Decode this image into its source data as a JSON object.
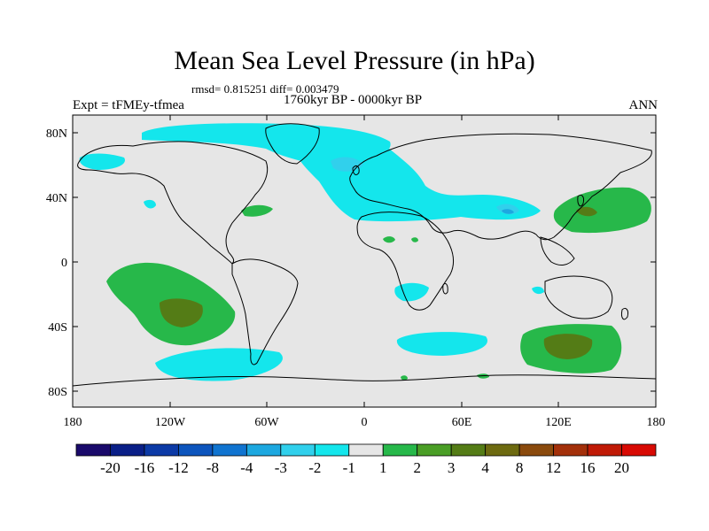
{
  "title": "Mean Sea Level Pressure (in hPa)",
  "stats": "rmsd= 0.815251 diff= 0.003479",
  "period": "1760kyr BP - 0000kyr BP",
  "experiment": "Expt = tFMEy-tfmea",
  "season": "ANN",
  "map": {
    "ocean_color": "#e6e6e6",
    "coast_color": "#000000",
    "lat_ticks": [
      "80N",
      "40N",
      "0",
      "40S",
      "80S"
    ],
    "lon_ticks": [
      "180",
      "120W",
      "60W",
      "0",
      "60E",
      "120E",
      "180"
    ]
  },
  "colorbar": {
    "labels": [
      "-20",
      "-16",
      "-12",
      "-8",
      "-4",
      "-3",
      "-2",
      "-1",
      "1",
      "2",
      "3",
      "4",
      "8",
      "12",
      "16",
      "20"
    ],
    "colors": [
      "#1a0a6b",
      "#0a1f87",
      "#0c3aa6",
      "#0d55bd",
      "#1074d0",
      "#1da8e0",
      "#31d0ec",
      "#14e6ec",
      "#e6e6e6",
      "#27b84a",
      "#4a9e26",
      "#547c16",
      "#6d6a10",
      "#8a4a0d",
      "#a3300a",
      "#c01a06",
      "#d80a04"
    ]
  }
}
